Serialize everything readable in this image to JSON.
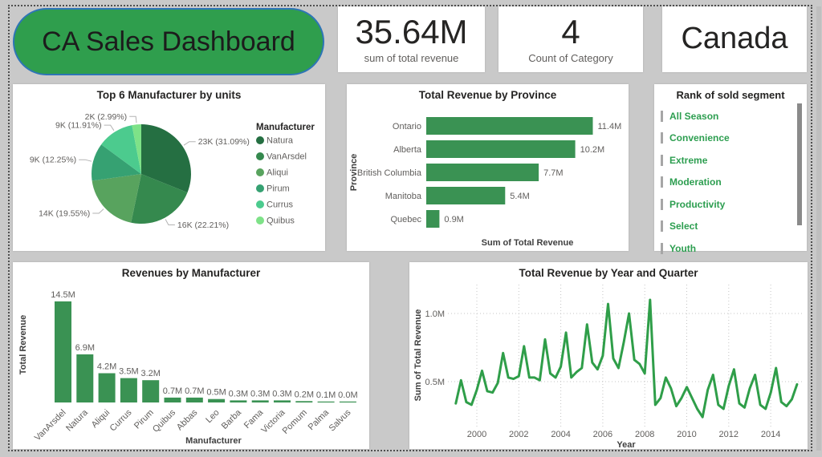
{
  "header": {
    "title": "CA Sales Dashboard",
    "kpis": [
      {
        "value": "35.64M",
        "label": "sum of total revenue"
      },
      {
        "value": "4",
        "label": "Count of Category"
      },
      {
        "value": "Canada"
      }
    ]
  },
  "colors": {
    "pill_green": "#2f9e4d",
    "pill_border_blue": "#2e75b6",
    "bar": "#3a9253",
    "line": "#2f9e49",
    "segment_text": "#2d9e50"
  },
  "chart_data": [
    {
      "type": "pie",
      "title": "Top 6 Manufacturer by units",
      "legend_title": "Manufacturer",
      "legend_position": "right",
      "slices": [
        {
          "name": "Natura",
          "units": "23K",
          "pct": 31.09,
          "label": "23K (31.09%)",
          "color": "#256f42"
        },
        {
          "name": "VanArsdel",
          "units": "16K",
          "pct": 22.21,
          "label": "16K (22.21%)",
          "color": "#35894e"
        },
        {
          "name": "Aliqui",
          "units": "14K",
          "pct": 19.55,
          "label": "14K (19.55%)",
          "color": "#58a35e"
        },
        {
          "name": "Pirum",
          "units": "9K",
          "pct": 12.25,
          "label": "9K (12.25%)",
          "color": "#36a172"
        },
        {
          "name": "Currus",
          "units": "9K",
          "pct": 11.91,
          "label": "9K (11.91%)",
          "color": "#4ccb8e"
        },
        {
          "name": "Quibus",
          "units": "2K",
          "pct": 2.99,
          "label": "2K (2.99%)",
          "color": "#7ee288"
        }
      ]
    },
    {
      "type": "bar",
      "orientation": "horizontal",
      "title": "Total Revenue by Province",
      "categories": [
        "Ontario",
        "Alberta",
        "British Columbia",
        "Manitoba",
        "Quebec"
      ],
      "values": [
        11.4,
        10.2,
        7.7,
        5.4,
        0.9
      ],
      "value_labels": [
        "11.4M",
        "10.2M",
        "7.7M",
        "5.4M",
        "0.9M"
      ],
      "xlabel": "Sum of Total Revenue",
      "ylabel": "Province"
    },
    {
      "type": "table",
      "title": "Rank of sold segment",
      "items": [
        "All Season",
        "Convenience",
        "Extreme",
        "Moderation",
        "Productivity",
        "Select",
        "Youth"
      ]
    },
    {
      "type": "bar",
      "orientation": "vertical",
      "title": "Revenues by Manufacturer",
      "categories": [
        "VanArsdel",
        "Natura",
        "Aliqui",
        "Currus",
        "Pirum",
        "Quibus",
        "Abbas",
        "Leo",
        "Barba",
        "Fama",
        "Victoria",
        "Pomum",
        "Palma",
        "Salvus"
      ],
      "values": [
        14.5,
        6.9,
        4.2,
        3.5,
        3.2,
        0.7,
        0.7,
        0.5,
        0.3,
        0.3,
        0.3,
        0.2,
        0.1,
        0.0
      ],
      "value_labels": [
        "14.5M",
        "6.9M",
        "4.2M",
        "3.5M",
        "3.2M",
        "0.7M",
        "0.7M",
        "0.5M",
        "0.3M",
        "0.3M",
        "0.3M",
        "0.2M",
        "0.1M",
        "0.0M"
      ],
      "xlabel": "Manufacturer",
      "ylabel": "Total Revenue"
    },
    {
      "type": "line",
      "title": "Total Revenue by Year and Quarter",
      "xlabel": "Year",
      "ylabel": "Sum of Total Revenue",
      "x_ticks": [
        "2000",
        "2002",
        "2004",
        "2006",
        "2008",
        "2010",
        "2012",
        "2014"
      ],
      "y_ticks": [
        {
          "v": 0.5,
          "label": "0.5M"
        },
        {
          "v": 1.0,
          "label": "1.0M"
        }
      ],
      "start_period": "1999 Q1",
      "frequency": "quarterly",
      "unit": "M",
      "values": [
        0.34,
        0.51,
        0.35,
        0.33,
        0.44,
        0.58,
        0.43,
        0.42,
        0.49,
        0.71,
        0.53,
        0.52,
        0.54,
        0.76,
        0.53,
        0.53,
        0.51,
        0.81,
        0.56,
        0.53,
        0.61,
        0.86,
        0.53,
        0.57,
        0.6,
        0.92,
        0.64,
        0.59,
        0.69,
        1.07,
        0.67,
        0.6,
        0.79,
        1.0,
        0.66,
        0.63,
        0.56,
        1.1,
        0.33,
        0.38,
        0.53,
        0.45,
        0.32,
        0.38,
        0.46,
        0.38,
        0.3,
        0.24,
        0.44,
        0.55,
        0.33,
        0.3,
        0.47,
        0.59,
        0.34,
        0.31,
        0.45,
        0.55,
        0.33,
        0.3,
        0.42,
        0.6,
        0.35,
        0.32,
        0.37,
        0.48
      ]
    }
  ]
}
